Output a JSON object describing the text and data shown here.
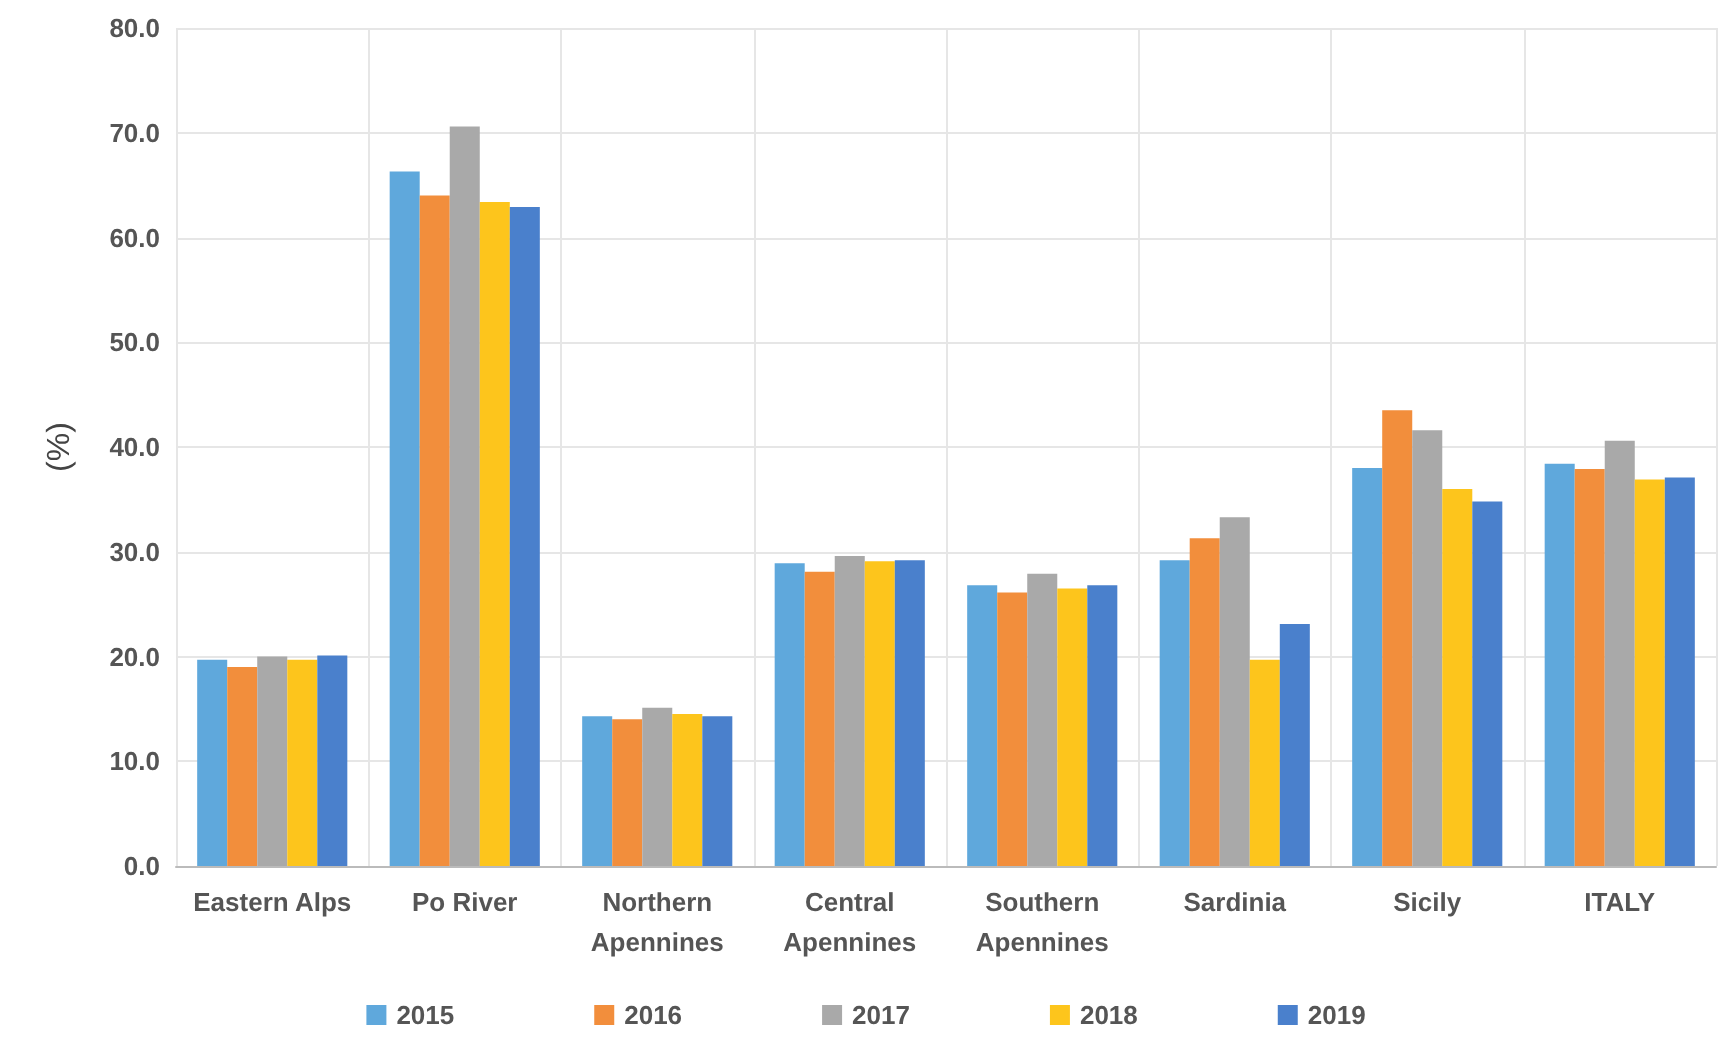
{
  "chart_data": {
    "type": "bar",
    "ylabel": "(%)",
    "categories": [
      "Eastern Alps",
      "Po River",
      "Northern\nApennines",
      "Central\nApennines",
      "Southern\nApennines",
      "Sardinia",
      "Sicily",
      "ITALY"
    ],
    "series": [
      {
        "name": "2015",
        "color": "#5fa8dc",
        "values": [
          19.7,
          66.3,
          14.3,
          28.9,
          26.8,
          29.2,
          38.0,
          38.4
        ]
      },
      {
        "name": "2016",
        "color": "#f28e3c",
        "values": [
          19.0,
          64.0,
          14.0,
          28.1,
          26.1,
          31.3,
          43.5,
          37.9
        ]
      },
      {
        "name": "2017",
        "color": "#a9a9a9",
        "values": [
          20.0,
          70.6,
          15.1,
          29.6,
          27.9,
          33.3,
          41.6,
          40.6
        ]
      },
      {
        "name": "2018",
        "color": "#fdc51c",
        "values": [
          19.7,
          63.4,
          14.5,
          29.1,
          26.5,
          19.7,
          36.0,
          36.9
        ]
      },
      {
        "name": "2019",
        "color": "#4a80cc",
        "values": [
          20.1,
          62.9,
          14.3,
          29.2,
          26.8,
          23.1,
          34.8,
          37.1
        ]
      }
    ],
    "ylim": [
      0,
      80
    ],
    "yticks": [
      {
        "value": 0,
        "label": "0.0"
      },
      {
        "value": 10,
        "label": "10.0"
      },
      {
        "value": 20,
        "label": "20.0"
      },
      {
        "value": 30,
        "label": "30.0"
      },
      {
        "value": 40,
        "label": "40.0"
      },
      {
        "value": 50,
        "label": "50.0"
      },
      {
        "value": 60,
        "label": "60.0"
      },
      {
        "value": 70,
        "label": "70.0"
      },
      {
        "value": 80,
        "label": "80.0"
      }
    ],
    "grid": true,
    "legend": "bottom"
  }
}
